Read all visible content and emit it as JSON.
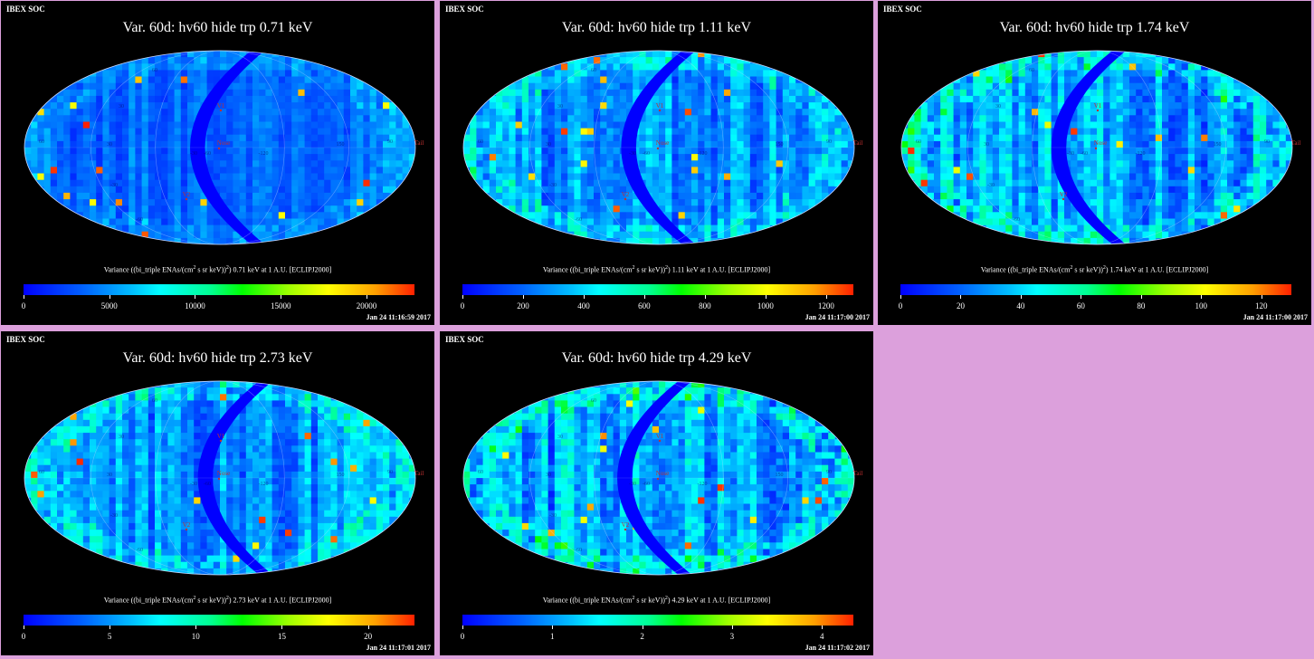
{
  "colors": {
    "background": "#dca0dc",
    "panel": "#000000",
    "label_red": "#c03030"
  },
  "panels": [
    {
      "org": "IBEX SOC",
      "title": "Var. 60d: hv60 hide trp 0.71 keV",
      "cb_pre": "Variance ((bi_triple ENAs/(cm",
      "cb_sup": "2",
      "cb_post": " s sr keV))",
      "cb_sup2": "2",
      "cb_tail": ") 0.71 keV at 1 A.U. [ECLIPJ2000]",
      "ticks": [
        0,
        5000,
        10000,
        15000,
        20000
      ],
      "tick_labels": [
        "0",
        "5000",
        "10000",
        "15000",
        "20000"
      ],
      "cb_max": 22800,
      "date": "Jan 24 11:16:59 2017"
    },
    {
      "org": "IBEX SOC",
      "title": "Var. 60d: hv60 hide trp 1.11 keV",
      "cb_pre": "Variance ((bi_triple ENAs/(cm",
      "cb_sup": "2",
      "cb_post": " s sr keV))",
      "cb_sup2": "2",
      "cb_tail": ") 1.11 keV at 1 A.U. [ECLIPJ2000]",
      "ticks": [
        0,
        200,
        400,
        600,
        800,
        1000,
        1200
      ],
      "tick_labels": [
        "0",
        "200",
        "400",
        "600",
        "800",
        "1000",
        "1200"
      ],
      "cb_max": 1290,
      "date": "Jan 24 11:17:00 2017"
    },
    {
      "org": "IBEX SOC",
      "title": "Var. 60d: hv60 hide trp 1.74 keV",
      "cb_pre": "Variance ((bi_triple ENAs/(cm",
      "cb_sup": "2",
      "cb_post": " s sr keV))",
      "cb_sup2": "2",
      "cb_tail": ") 1.74 keV at 1 A.U. [ECLIPJ2000]",
      "ticks": [
        0,
        20,
        40,
        60,
        80,
        100,
        120
      ],
      "tick_labels": [
        "0",
        "20",
        "40",
        "60",
        "80",
        "100",
        "120"
      ],
      "cb_max": 130,
      "date": "Jan 24 11:17:00 2017"
    },
    {
      "org": "IBEX SOC",
      "title": "Var. 60d: hv60 hide trp 2.73 keV",
      "cb_pre": "Variance ((bi_triple ENAs/(cm",
      "cb_sup": "2",
      "cb_post": " s sr keV))",
      "cb_sup2": "2",
      "cb_tail": ") 2.73 keV at 1 A.U. [ECLIPJ2000]",
      "ticks": [
        0,
        5,
        10,
        15,
        20
      ],
      "tick_labels": [
        "0",
        "5",
        "10",
        "15",
        "20"
      ],
      "cb_max": 22.7,
      "date": "Jan 24 11:17:01 2017"
    },
    {
      "org": "IBEX SOC",
      "title": "Var. 60d: hv60 hide trp 4.29 keV",
      "cb_pre": "Variance ((bi_triple ENAs/(cm",
      "cb_sup": "2",
      "cb_post": " s sr keV))",
      "cb_sup2": "2",
      "cb_tail": ") 4.29 keV at 1 A.U. [ECLIPJ2000]",
      "ticks": [
        0,
        1,
        2,
        3,
        4
      ],
      "tick_labels": [
        "0",
        "1",
        "2",
        "3",
        "4"
      ],
      "cb_max": 4.35,
      "date": "Jan 24 11:17:02 2017"
    }
  ],
  "map_labels": {
    "nose": "Nose",
    "tail": "Tail",
    "v1": "V1",
    "v2": "V2",
    "lon_left": "60",
    "lon_30": "30",
    "lon_m30": "-30",
    "lon_m60": "-60",
    "lon_m120": "-120",
    "lon_150": "150",
    "lon_90": "90",
    "lat_30": "30",
    "lat_m30": "-30",
    "lat_60": "60",
    "lat_m60": "-60"
  }
}
